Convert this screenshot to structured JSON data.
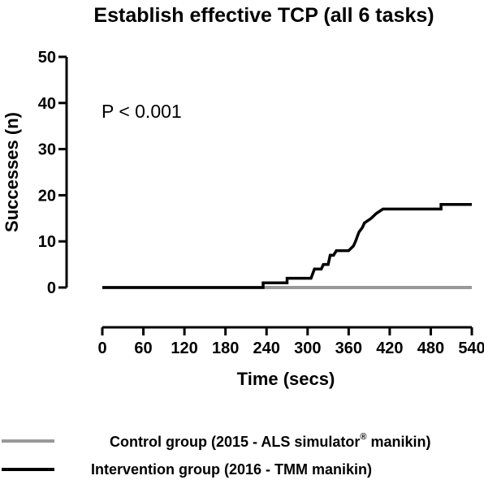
{
  "chart_data": {
    "type": "line",
    "step": true,
    "title": "Establish effective TCP (all 6 tasks)",
    "xlabel": "Time (secs)",
    "ylabel": "Successes (n)",
    "xlim": [
      0,
      540
    ],
    "ylim": [
      0,
      50
    ],
    "x_ticks": [
      0,
      60,
      120,
      180,
      240,
      300,
      360,
      420,
      480,
      540
    ],
    "y_ticks": [
      0,
      10,
      20,
      30,
      40,
      50
    ],
    "annotation": "P < 0.001",
    "grid": false,
    "legend_position": "bottom",
    "series": [
      {
        "name": "Control group (2015 - ALS simulator® manikin)",
        "legend_main": "Control group (2015 - ALS simulator",
        "legend_sup": "®",
        "legend_tail": " manikin)",
        "color": "#999999",
        "points": [
          [
            0,
            0
          ],
          [
            540,
            0
          ]
        ]
      },
      {
        "name": "Intervention group (2016 - TMM manikin)",
        "legend_main": "Intervention group (2016 - TMM manikin)",
        "legend_sup": "",
        "legend_tail": "",
        "color": "#000000",
        "points": [
          [
            0,
            0
          ],
          [
            235,
            0
          ],
          [
            235,
            1
          ],
          [
            270,
            1
          ],
          [
            270,
            2
          ],
          [
            305,
            2
          ],
          [
            310,
            4
          ],
          [
            320,
            4
          ],
          [
            323,
            5
          ],
          [
            330,
            5
          ],
          [
            333,
            7
          ],
          [
            338,
            7
          ],
          [
            342,
            8
          ],
          [
            360,
            8
          ],
          [
            367,
            9
          ],
          [
            370,
            10
          ],
          [
            375,
            12
          ],
          [
            380,
            13
          ],
          [
            383,
            14
          ],
          [
            393,
            15
          ],
          [
            400,
            16
          ],
          [
            410,
            17
          ],
          [
            495,
            17
          ],
          [
            495,
            18
          ],
          [
            540,
            18
          ]
        ]
      }
    ]
  }
}
